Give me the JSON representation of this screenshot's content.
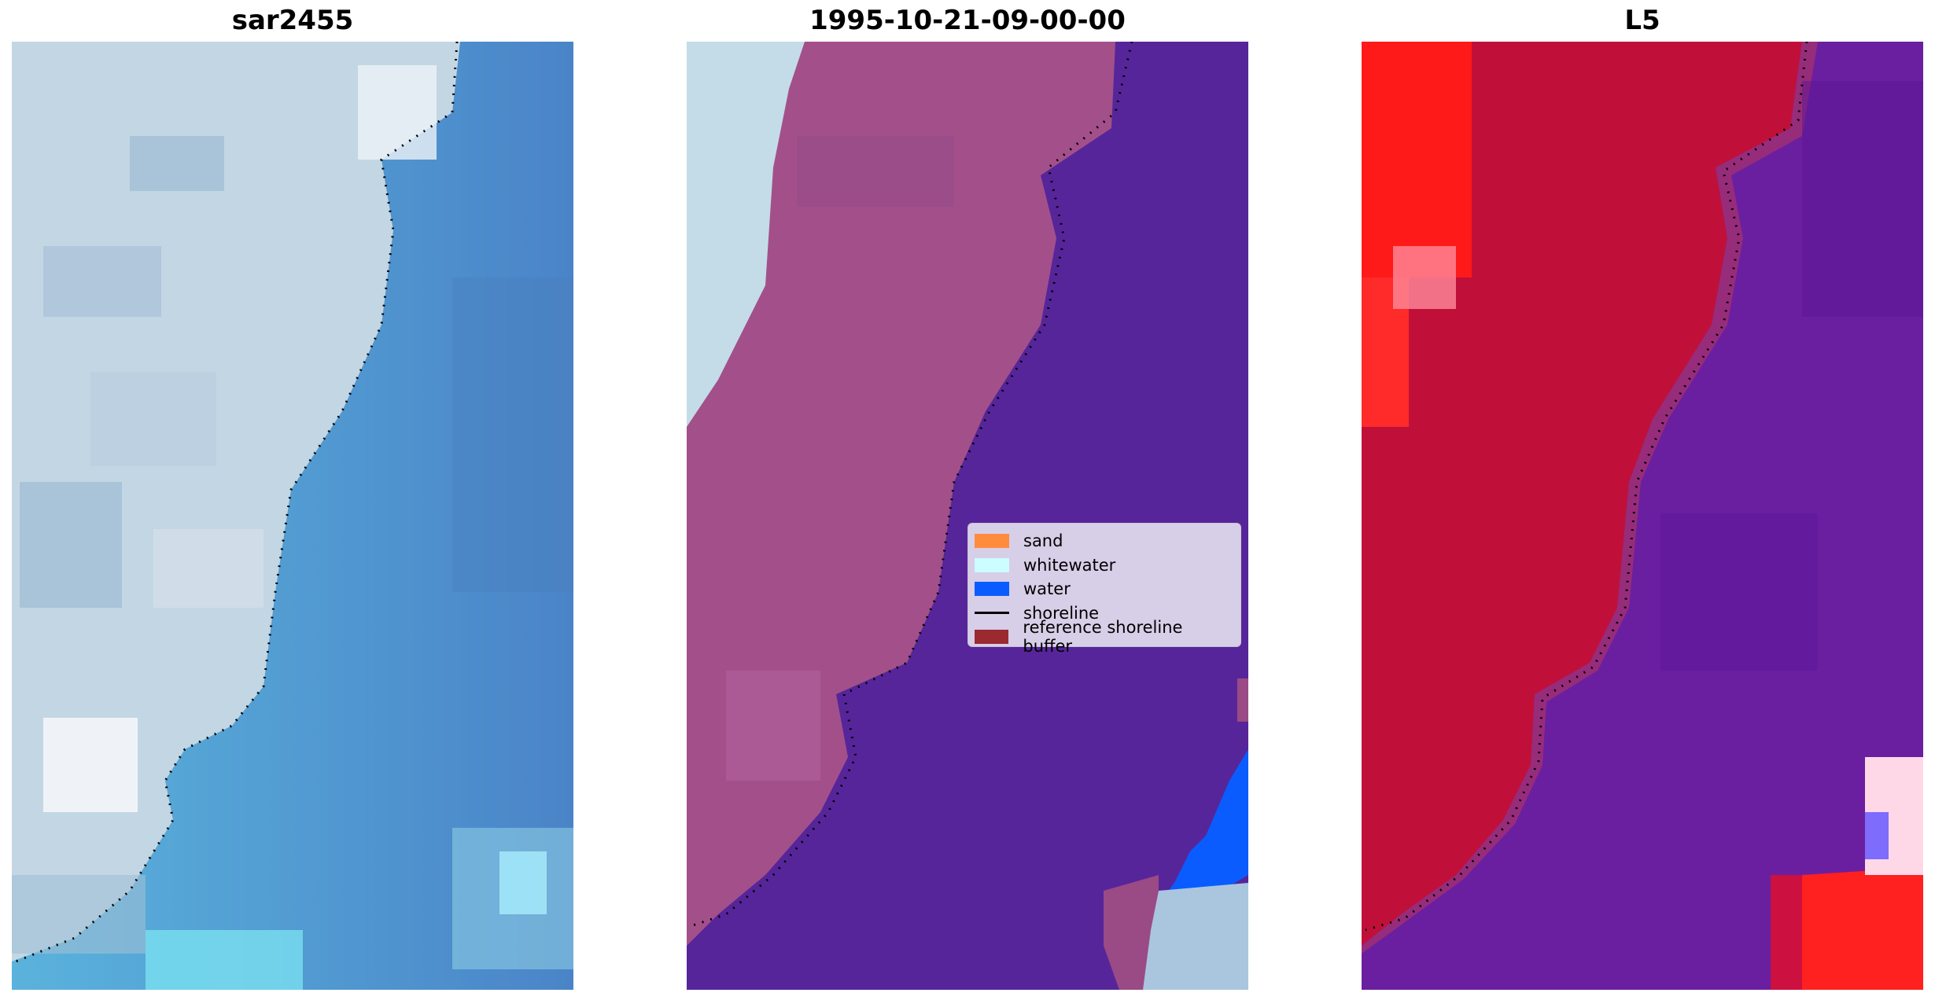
{
  "panels": [
    {
      "title": "sar2455"
    },
    {
      "title": "1995-10-21-09-00-00"
    },
    {
      "title": "L5"
    }
  ],
  "legend": {
    "items": [
      {
        "label": "sand",
        "kind": "patch",
        "color": "#ff8c3d"
      },
      {
        "label": "whitewater",
        "kind": "patch",
        "color": "#ccfdff"
      },
      {
        "label": "water",
        "kind": "patch",
        "color": "#0a5cff"
      },
      {
        "label": "shoreline",
        "kind": "line",
        "color": "#000000"
      },
      {
        "label": "reference shoreline buffer",
        "kind": "patch",
        "color": "#9a2a30"
      }
    ]
  },
  "chart_data": [
    {
      "type": "image",
      "title": "sar2455"
    },
    {
      "type": "image",
      "title": "1995-10-21-09-00-00",
      "legend": [
        "sand",
        "whitewater",
        "water",
        "shoreline",
        "reference shoreline buffer"
      ]
    },
    {
      "type": "image",
      "title": "L5"
    }
  ],
  "colors": {
    "coast_light": "#c7dbe6",
    "ocean_blue": "#4f8fcf",
    "buffer_purple": "#a3508a",
    "classified_water": "#57259a",
    "water_blue": "#0a5cff",
    "l5_red": "#c0103a",
    "l5_purple": "#6a1fa0"
  }
}
